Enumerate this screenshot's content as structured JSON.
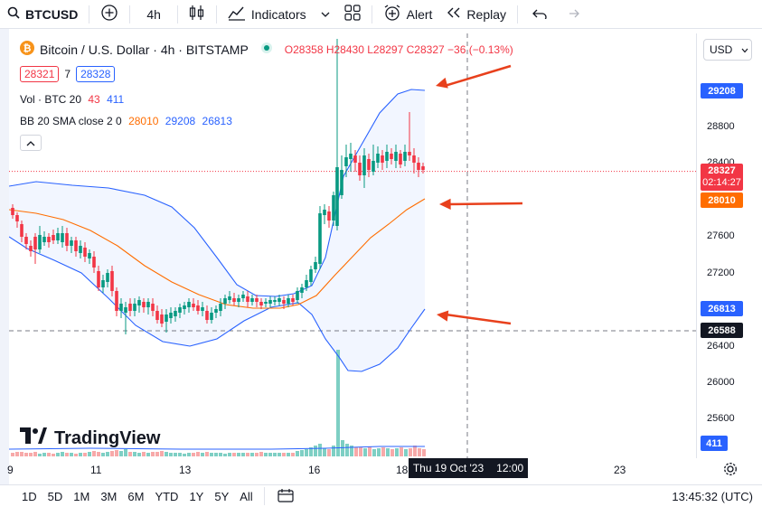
{
  "toolbar": {
    "symbol": "BTCUSD",
    "interval": "4h",
    "indicators_label": "Indicators",
    "alert_label": "Alert",
    "replay_label": "Replay"
  },
  "legend": {
    "title": "Bitcoin / U.S. Dollar · 4h · BITSTAMP",
    "o": "O28358",
    "h": "H28430",
    "l": "L28297",
    "c": "C28327",
    "change": "−36 (−0.13%)",
    "bid": "28321",
    "spread": "7",
    "ask": "28328",
    "vol_label": "Vol · BTC 20",
    "vol_a": "43",
    "vol_b": "411",
    "bb_label": "BB 20 SMA close 2 0",
    "bb_mid": "28010",
    "bb_up": "29208",
    "bb_low": "26813"
  },
  "currency": "USD",
  "price_scale": {
    "ticks": [
      "28800",
      "28400",
      "27600",
      "27200",
      "26400",
      "26000",
      "25600"
    ],
    "tag_upper": "29208",
    "tag_last": "28327",
    "tag_countdown": "02:14:27",
    "tag_mid": "28010",
    "tag_lower": "26813",
    "tag_cross": "26588",
    "tag_vol": "411"
  },
  "time_axis": {
    "labels": [
      "9",
      "11",
      "13",
      "16",
      "18",
      "23"
    ],
    "crosshair_label": "Thu 19 Oct '23",
    "crosshair_time": "12:00"
  },
  "logo_text": "TradingView",
  "bottom": {
    "ranges": [
      "1D",
      "5D",
      "1M",
      "3M",
      "6M",
      "YTD",
      "1Y",
      "5Y",
      "All"
    ],
    "clock": "13:45:32 (UTC)"
  },
  "colors": {
    "up": "#089981",
    "down": "#f23645",
    "bb_band": "#2962ff",
    "bb_mid": "#ff6d00",
    "arrow": "#e8401c"
  }
}
